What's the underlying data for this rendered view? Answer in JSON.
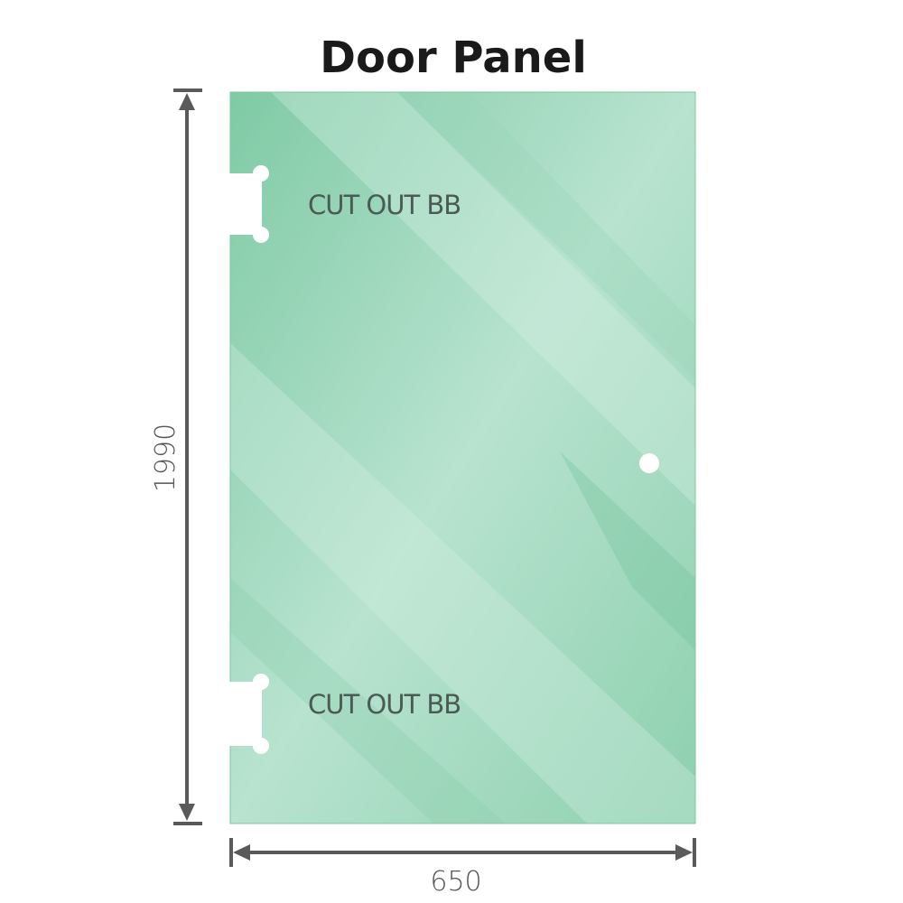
{
  "title": "Door Panel",
  "cutout_top_label": "CUT OUT BB",
  "cutout_bottom_label": "CUT OUT BB",
  "height_label": "1990",
  "width_label": "650",
  "colors": {
    "glass": "#8fd2b0",
    "glass_dark": "#7ccaa4",
    "glass_light": "#bfe6d3",
    "dimension_line": "#5a5a5a",
    "label_text": "#4a5a55"
  }
}
